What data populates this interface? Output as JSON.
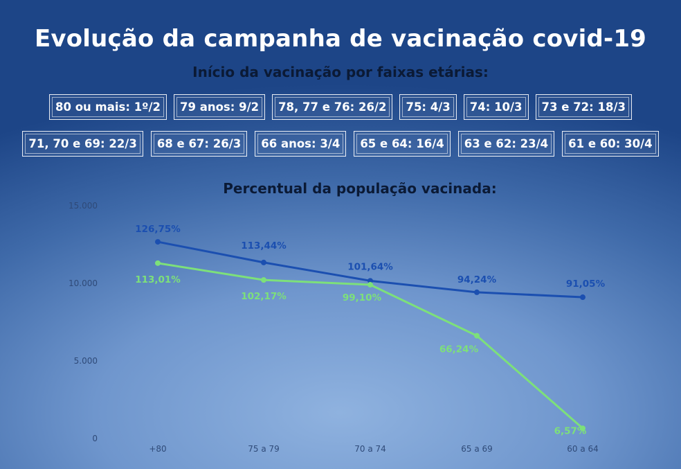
{
  "header": {
    "title": "Evolução da campanha de vacinação covid-19",
    "subtitle": "Início da vacinação por faixas etárias:"
  },
  "badges_row1": [
    "80 ou mais: 1º/2",
    "79 anos: 9/2",
    "78, 77 e 76: 26/2",
    "75: 4/3",
    "74: 10/3",
    "73 e 72: 18/3"
  ],
  "badges_row2": [
    "71, 70 e 69: 22/3",
    "68 e 67: 26/3",
    "66 anos: 3/4",
    "65 e 64: 16/4",
    "63 e 62: 23/4",
    "61 e 60: 30/4"
  ],
  "colors": {
    "series_blue": "#1b4fb0",
    "series_green": "#7de07a",
    "tick_text": "#2f4a78"
  },
  "chart_data": {
    "type": "line",
    "title": "Percentual da população vacinada:",
    "categories": [
      "+80",
      "75 a 79",
      "70 a 74",
      "65 a 69",
      "60 a 64"
    ],
    "y_ticks": [
      "0",
      "5.000",
      "10.000",
      "15.000"
    ],
    "ylim": [
      0,
      15000
    ],
    "grid": false,
    "series": [
      {
        "color": "#1b4fb0",
        "values": [
          12675,
          11344,
          10164,
          9424,
          9105
        ],
        "labels": [
          "126,75%",
          "113,44%",
          "101,64%",
          "94,24%",
          "91,05%"
        ]
      },
      {
        "color": "#7de07a",
        "values": [
          11301,
          10217,
          9910,
          6624,
          657
        ],
        "labels": [
          "113,01%",
          "102,17%",
          "99,10%",
          "66,24%",
          "6,57%"
        ]
      }
    ]
  }
}
